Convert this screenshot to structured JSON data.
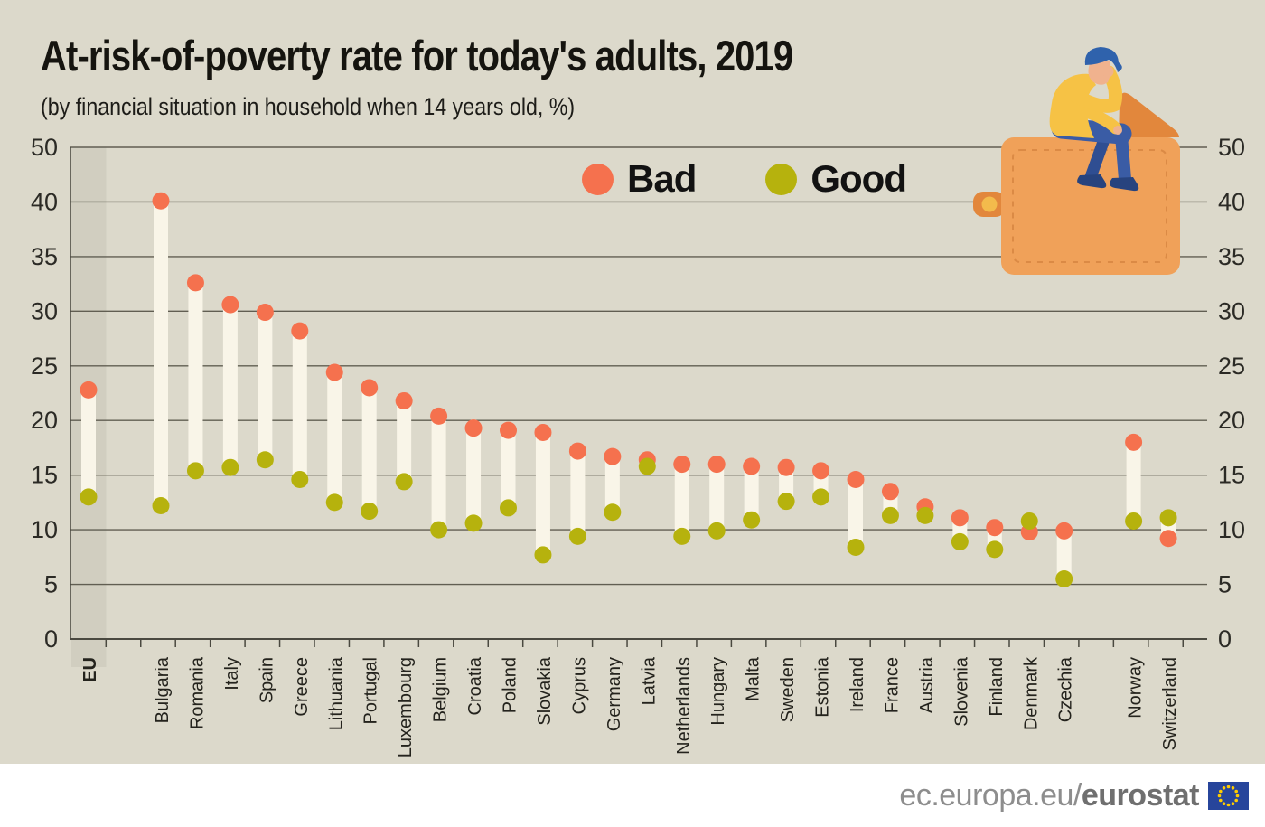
{
  "header": {
    "title": "At-risk-of-poverty rate for today's adults, 2019",
    "subtitle": "(by financial situation in household when 14 years old, %)"
  },
  "legend": {
    "items": [
      {
        "label": "Bad",
        "color": "#F5714E"
      },
      {
        "label": "Good",
        "color": "#B6B20D"
      }
    ]
  },
  "footer": {
    "url_regular": "ec.europa.eu/",
    "url_bold": "eurostat",
    "flag_icon": "eu-flag"
  },
  "illustration": "person-sitting-on-wallet",
  "palette": {
    "background": "#DCD9CB",
    "eu_band": "#D1CEC0",
    "range_bar": "#F9F5E8",
    "bad": "#F5714E",
    "good": "#B6B20D",
    "gridline": "#615E52",
    "axis": "#4A4940",
    "axis_text": "#2B2A25",
    "footer_bg": "#FFFFFF",
    "footer_text": "#8D8D8D",
    "flag_blue": "#27459B",
    "flag_stars": "#FFCC00"
  },
  "chart_data": {
    "type": "scatter",
    "variant": "dumbbell-range",
    "title": "At-risk-of-poverty rate for today's adults, 2019",
    "subtitle": "(by financial situation in household when 14 years old, %)",
    "unit": "%",
    "grid": true,
    "legend_position": "top-center",
    "ylim": [
      0,
      50
    ],
    "ytick_labels": [
      "0",
      "5",
      "10",
      "15",
      "20",
      "25",
      "30",
      "35",
      "40",
      "50"
    ],
    "axis_note": "Gridlines evenly spaced every 5 units; 45 is unlabeled and the top gridline is labeled 50. Identical labels on left and right axes.",
    "highlight_category": "EU",
    "category_groups": {
      "eu_aggregate": [
        "EU"
      ],
      "eu_members": [
        "Bulgaria",
        "Romania",
        "Italy",
        "Spain",
        "Greece",
        "Lithuania",
        "Portugal",
        "Luxembourg",
        "Belgium",
        "Croatia",
        "Poland",
        "Slovakia",
        "Cyprus",
        "Germany",
        "Latvia",
        "Netherlands",
        "Hungary",
        "Malta",
        "Sweden",
        "Estonia",
        "Ireland",
        "France",
        "Austria",
        "Slovenia",
        "Finland",
        "Denmark",
        "Czechia"
      ],
      "efta": [
        "Norway",
        "Switzerland"
      ]
    },
    "categories": [
      "EU",
      "Bulgaria",
      "Romania",
      "Italy",
      "Spain",
      "Greece",
      "Lithuania",
      "Portugal",
      "Luxembourg",
      "Belgium",
      "Croatia",
      "Poland",
      "Slovakia",
      "Cyprus",
      "Germany",
      "Latvia",
      "Netherlands",
      "Hungary",
      "Malta",
      "Sweden",
      "Estonia",
      "Ireland",
      "France",
      "Austria",
      "Slovenia",
      "Finland",
      "Denmark",
      "Czechia",
      "Norway",
      "Switzerland"
    ],
    "series": [
      {
        "name": "Bad",
        "color": "#F5714E",
        "values": [
          22.8,
          40.1,
          32.6,
          30.6,
          29.9,
          28.2,
          24.4,
          23.0,
          21.8,
          20.4,
          19.3,
          19.1,
          18.9,
          17.2,
          16.7,
          16.4,
          16.0,
          16.0,
          15.8,
          15.7,
          15.4,
          14.6,
          13.5,
          12.1,
          11.1,
          10.2,
          9.8,
          9.9,
          18.0,
          9.2
        ]
      },
      {
        "name": "Good",
        "color": "#B6B20D",
        "values": [
          13.0,
          12.2,
          15.4,
          15.7,
          16.4,
          14.6,
          12.5,
          11.7,
          14.4,
          10.0,
          10.6,
          12.0,
          7.7,
          9.4,
          11.6,
          15.8,
          9.4,
          9.9,
          10.9,
          12.6,
          13.0,
          8.4,
          11.3,
          11.3,
          8.9,
          8.2,
          10.8,
          5.5,
          10.8,
          11.1
        ]
      }
    ]
  }
}
